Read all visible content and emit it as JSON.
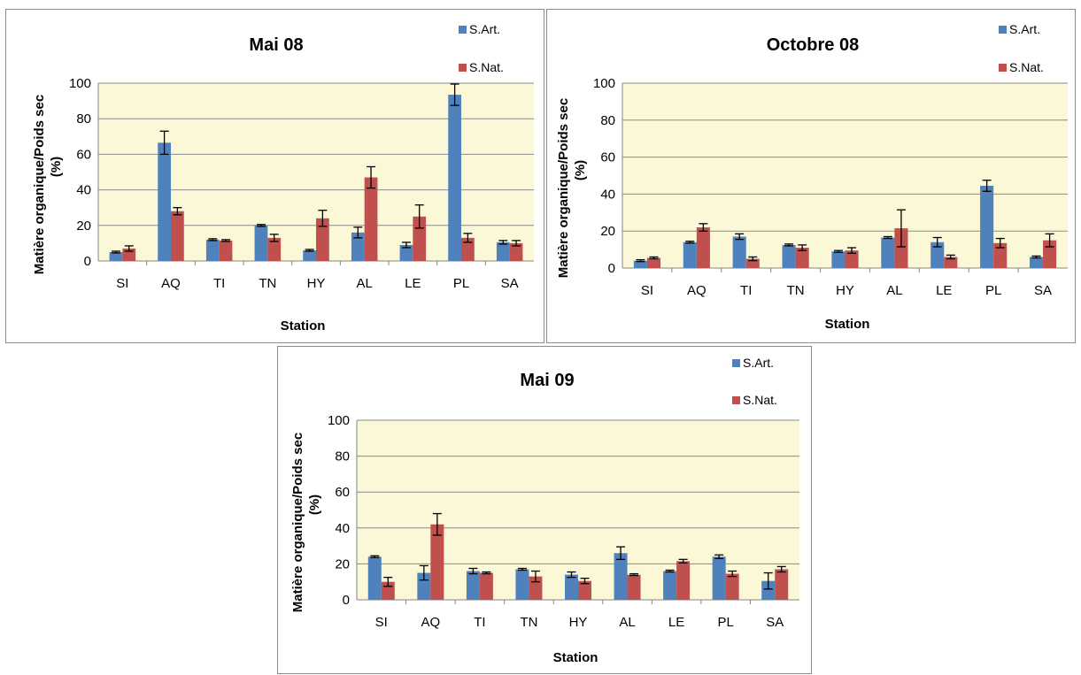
{
  "chart_data": [
    {
      "type": "bar",
      "title": "Mai 08",
      "xlabel": "Station",
      "ylabel": "Matière organique/Poids sec (%)",
      "ylim": [
        0,
        100
      ],
      "yticks": [
        "0",
        "20",
        "40",
        "60",
        "80",
        "100"
      ],
      "grid": true,
      "legend_position": "top-right",
      "categories": [
        "SI",
        "AQ",
        "TI",
        "TN",
        "HY",
        "AL",
        "LE",
        "PL",
        "SA"
      ],
      "series": [
        {
          "name": "S.Art.",
          "color": "#4f81bd",
          "values": [
            5,
            66.5,
            12,
            20,
            6,
            16,
            9,
            93.5,
            10.5
          ],
          "errors": [
            0.5,
            6.5,
            0.5,
            0.5,
            0.5,
            3,
            1.5,
            6,
            1
          ]
        },
        {
          "name": "S.Nat.",
          "color": "#c0504d",
          "values": [
            7,
            28,
            11.5,
            13,
            24,
            47,
            25,
            13,
            10
          ],
          "errors": [
            1.5,
            2,
            0.5,
            2,
            4.5,
            6,
            6.5,
            2.5,
            1.5
          ]
        }
      ]
    },
    {
      "type": "bar",
      "title": "Octobre 08",
      "xlabel": "Station",
      "ylabel": "Matière organique/Poids sec (%)",
      "ylim": [
        0,
        100
      ],
      "yticks": [
        "0",
        "20",
        "40",
        "60",
        "80",
        "100"
      ],
      "grid": true,
      "legend_position": "top-right",
      "categories": [
        "SI",
        "AQ",
        "TI",
        "TN",
        "HY",
        "AL",
        "LE",
        "PL",
        "SA"
      ],
      "series": [
        {
          "name": "S.Art.",
          "color": "#4f81bd",
          "values": [
            4,
            14,
            17,
            12.5,
            9,
            16.5,
            14,
            44.5,
            6
          ],
          "errors": [
            0.5,
            0.5,
            1.5,
            0.5,
            0.5,
            0.5,
            2.5,
            3,
            0.5
          ]
        },
        {
          "name": "S.Nat.",
          "color": "#c0504d",
          "values": [
            5.5,
            22,
            5,
            11,
            9.5,
            21.5,
            6,
            13.5,
            15
          ],
          "errors": [
            0.5,
            2,
            1,
            1.5,
            1.5,
            10,
            1,
            2.5,
            3.5
          ]
        }
      ]
    },
    {
      "type": "bar",
      "title": "Mai 09",
      "xlabel": "Station",
      "ylabel": "Matière organique/Poids sec (%)",
      "ylim": [
        0,
        100
      ],
      "yticks": [
        "0",
        "20",
        "40",
        "60",
        "80",
        "100"
      ],
      "grid": true,
      "legend_position": "top-right",
      "categories": [
        "SI",
        "AQ",
        "TI",
        "TN",
        "HY",
        "AL",
        "LE",
        "PL",
        "SA"
      ],
      "series": [
        {
          "name": "S.Art.",
          "color": "#4f81bd",
          "values": [
            24,
            15,
            16,
            17,
            14,
            26,
            16,
            24,
            10.5
          ],
          "errors": [
            0.5,
            4,
            1.5,
            0.5,
            1.5,
            3.5,
            0.5,
            1,
            4.5
          ]
        },
        {
          "name": "S.Nat.",
          "color": "#c0504d",
          "values": [
            10,
            42,
            15,
            13,
            10.5,
            14,
            21.5,
            14.5,
            17
          ],
          "errors": [
            2.5,
            6,
            0.5,
            3,
            1.5,
            0.5,
            1,
            1.5,
            1.5
          ]
        }
      ]
    }
  ],
  "style": {
    "plot_background": "#fbf8d7",
    "gridline_color": "#8a8a8a",
    "panel_border": "#8c8c8c"
  }
}
